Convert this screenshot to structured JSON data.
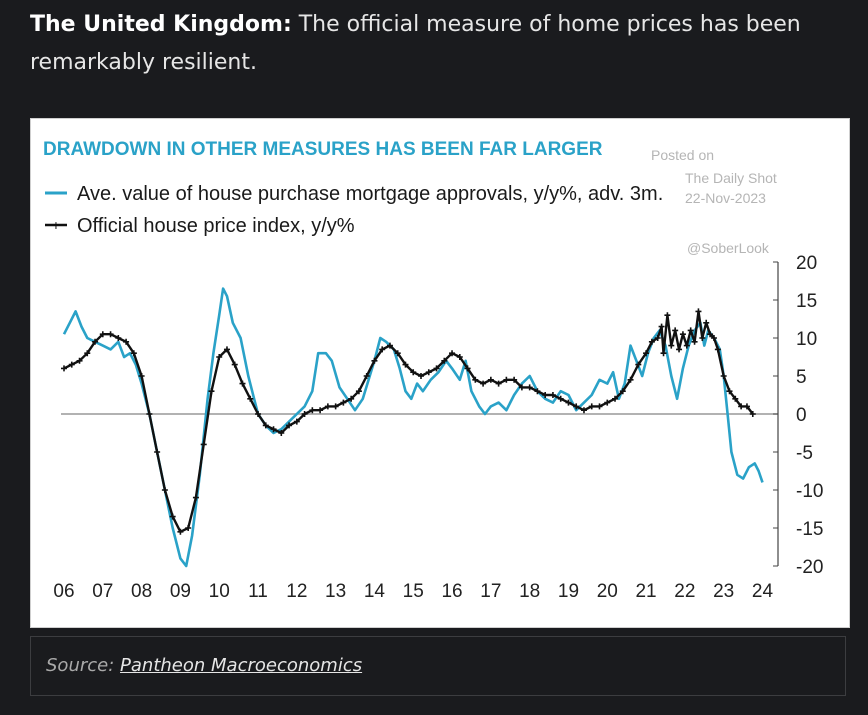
{
  "intro": {
    "bold": "The United Kingdom:",
    "text": " The official measure of home prices has been remarkably resilient."
  },
  "watermark": {
    "line1": "Posted on",
    "line2": "The Daily Shot",
    "line3": "22-Nov-2023",
    "handle": "@SoberLook"
  },
  "source": {
    "label": "Source:",
    "link": "Pantheon Macroeconomics"
  },
  "chart_data": {
    "type": "line",
    "title": "DRAWDOWN IN OTHER MEASURES HAS BEEN FAR LARGER",
    "xlabel": "",
    "ylabel": "",
    "x_ticks": [
      "06",
      "07",
      "08",
      "09",
      "10",
      "11",
      "12",
      "13",
      "14",
      "15",
      "16",
      "17",
      "18",
      "19",
      "20",
      "21",
      "22",
      "23",
      "24"
    ],
    "y_ticks": [
      20,
      15,
      10,
      5,
      0,
      -5,
      -10,
      -15,
      -20
    ],
    "xlim": [
      2006,
      2024.4
    ],
    "ylim": [
      -20,
      20
    ],
    "y_axis_side": "right",
    "legend_position": "top-left",
    "colors": {
      "blue": "#2aa2c8",
      "black": "#111111",
      "title": "#2aa2c8"
    },
    "series": [
      {
        "name": "Ave. value of house purchase mortgage approvals, y/y%, adv. 3m.",
        "color": "#2aa2c8",
        "marker": "none",
        "points": [
          [
            2006.0,
            10.5
          ],
          [
            2006.15,
            12.0
          ],
          [
            2006.3,
            13.5
          ],
          [
            2006.45,
            11.5
          ],
          [
            2006.6,
            10.0
          ],
          [
            2006.8,
            9.5
          ],
          [
            2007.0,
            9.0
          ],
          [
            2007.2,
            8.5
          ],
          [
            2007.4,
            9.5
          ],
          [
            2007.55,
            7.5
          ],
          [
            2007.7,
            8.0
          ],
          [
            2007.85,
            6.5
          ],
          [
            2008.0,
            4.0
          ],
          [
            2008.2,
            0.0
          ],
          [
            2008.4,
            -5.0
          ],
          [
            2008.6,
            -10.0
          ],
          [
            2008.8,
            -15.0
          ],
          [
            2009.0,
            -19.0
          ],
          [
            2009.15,
            -20.0
          ],
          [
            2009.3,
            -16.0
          ],
          [
            2009.5,
            -8.0
          ],
          [
            2009.7,
            2.0
          ],
          [
            2009.85,
            8.0
          ],
          [
            2010.0,
            13.0
          ],
          [
            2010.1,
            16.5
          ],
          [
            2010.2,
            15.5
          ],
          [
            2010.35,
            12.0
          ],
          [
            2010.55,
            10.0
          ],
          [
            2010.75,
            5.0
          ],
          [
            2011.0,
            0.0
          ],
          [
            2011.2,
            -1.5
          ],
          [
            2011.4,
            -2.5
          ],
          [
            2011.6,
            -2.0
          ],
          [
            2011.8,
            -1.0
          ],
          [
            2012.0,
            0.0
          ],
          [
            2012.2,
            1.0
          ],
          [
            2012.4,
            3.0
          ],
          [
            2012.55,
            8.0
          ],
          [
            2012.75,
            8.0
          ],
          [
            2012.9,
            7.0
          ],
          [
            2013.1,
            3.5
          ],
          [
            2013.3,
            2.0
          ],
          [
            2013.5,
            0.5
          ],
          [
            2013.7,
            2.0
          ],
          [
            2013.85,
            4.5
          ],
          [
            2014.0,
            7.0
          ],
          [
            2014.15,
            10.0
          ],
          [
            2014.3,
            9.5
          ],
          [
            2014.5,
            8.5
          ],
          [
            2014.65,
            6.0
          ],
          [
            2014.8,
            3.0
          ],
          [
            2014.95,
            2.0
          ],
          [
            2015.1,
            4.0
          ],
          [
            2015.25,
            3.0
          ],
          [
            2015.45,
            4.5
          ],
          [
            2015.65,
            5.5
          ],
          [
            2015.85,
            7.0
          ],
          [
            2016.0,
            6.0
          ],
          [
            2016.2,
            4.5
          ],
          [
            2016.35,
            7.0
          ],
          [
            2016.5,
            3.0
          ],
          [
            2016.7,
            1.0
          ],
          [
            2016.85,
            0.0
          ],
          [
            2017.0,
            1.0
          ],
          [
            2017.2,
            1.5
          ],
          [
            2017.4,
            0.5
          ],
          [
            2017.6,
            2.5
          ],
          [
            2017.8,
            4.0
          ],
          [
            2018.0,
            5.0
          ],
          [
            2018.2,
            3.0
          ],
          [
            2018.4,
            2.0
          ],
          [
            2018.6,
            1.5
          ],
          [
            2018.8,
            3.0
          ],
          [
            2019.0,
            2.5
          ],
          [
            2019.2,
            0.5
          ],
          [
            2019.4,
            1.5
          ],
          [
            2019.6,
            2.5
          ],
          [
            2019.8,
            4.5
          ],
          [
            2020.0,
            4.0
          ],
          [
            2020.15,
            5.5
          ],
          [
            2020.3,
            2.0
          ],
          [
            2020.45,
            4.0
          ],
          [
            2020.6,
            9.0
          ],
          [
            2020.75,
            7.0
          ],
          [
            2020.9,
            5.0
          ],
          [
            2021.05,
            8.0
          ],
          [
            2021.2,
            10.0
          ],
          [
            2021.35,
            11.0
          ],
          [
            2021.5,
            9.0
          ],
          [
            2021.65,
            5.0
          ],
          [
            2021.8,
            2.0
          ],
          [
            2021.95,
            6.0
          ],
          [
            2022.1,
            9.0
          ],
          [
            2022.25,
            11.0
          ],
          [
            2022.4,
            12.0
          ],
          [
            2022.5,
            9.0
          ],
          [
            2022.6,
            11.0
          ],
          [
            2022.75,
            10.0
          ],
          [
            2022.9,
            8.5
          ],
          [
            2023.0,
            5.0
          ],
          [
            2023.1,
            0.0
          ],
          [
            2023.2,
            -5.0
          ],
          [
            2023.35,
            -8.0
          ],
          [
            2023.5,
            -8.5
          ],
          [
            2023.65,
            -7.0
          ],
          [
            2023.8,
            -6.5
          ],
          [
            2023.9,
            -7.5
          ],
          [
            2024.0,
            -9.0
          ]
        ]
      },
      {
        "name": "Official house price index, y/y%",
        "color": "#111111",
        "marker": "cross",
        "points": [
          [
            2006.0,
            6.0
          ],
          [
            2006.2,
            6.5
          ],
          [
            2006.4,
            7.0
          ],
          [
            2006.6,
            8.0
          ],
          [
            2006.8,
            9.5
          ],
          [
            2007.0,
            10.5
          ],
          [
            2007.2,
            10.5
          ],
          [
            2007.4,
            10.0
          ],
          [
            2007.6,
            9.5
          ],
          [
            2007.8,
            8.0
          ],
          [
            2008.0,
            5.0
          ],
          [
            2008.2,
            0.0
          ],
          [
            2008.4,
            -5.0
          ],
          [
            2008.6,
            -10.0
          ],
          [
            2008.8,
            -13.5
          ],
          [
            2009.0,
            -15.5
          ],
          [
            2009.2,
            -15.0
          ],
          [
            2009.4,
            -11.0
          ],
          [
            2009.6,
            -4.0
          ],
          [
            2009.8,
            3.0
          ],
          [
            2010.0,
            7.5
          ],
          [
            2010.2,
            8.5
          ],
          [
            2010.4,
            6.5
          ],
          [
            2010.6,
            4.0
          ],
          [
            2010.8,
            2.0
          ],
          [
            2011.0,
            0.0
          ],
          [
            2011.2,
            -1.5
          ],
          [
            2011.4,
            -2.0
          ],
          [
            2011.6,
            -2.5
          ],
          [
            2011.8,
            -1.5
          ],
          [
            2012.0,
            -1.0
          ],
          [
            2012.2,
            0.0
          ],
          [
            2012.4,
            0.5
          ],
          [
            2012.6,
            0.5
          ],
          [
            2012.8,
            1.0
          ],
          [
            2013.0,
            1.0
          ],
          [
            2013.2,
            1.5
          ],
          [
            2013.4,
            2.0
          ],
          [
            2013.6,
            3.0
          ],
          [
            2013.8,
            5.0
          ],
          [
            2014.0,
            7.0
          ],
          [
            2014.2,
            8.5
          ],
          [
            2014.4,
            9.0
          ],
          [
            2014.6,
            8.0
          ],
          [
            2014.8,
            6.5
          ],
          [
            2015.0,
            5.5
          ],
          [
            2015.2,
            5.0
          ],
          [
            2015.4,
            5.5
          ],
          [
            2015.6,
            6.0
          ],
          [
            2015.8,
            7.0
          ],
          [
            2016.0,
            8.0
          ],
          [
            2016.2,
            7.5
          ],
          [
            2016.4,
            6.0
          ],
          [
            2016.6,
            4.5
          ],
          [
            2016.8,
            4.0
          ],
          [
            2017.0,
            4.5
          ],
          [
            2017.2,
            4.0
          ],
          [
            2017.4,
            4.5
          ],
          [
            2017.6,
            4.5
          ],
          [
            2017.8,
            3.5
          ],
          [
            2018.0,
            3.5
          ],
          [
            2018.2,
            3.0
          ],
          [
            2018.4,
            2.5
          ],
          [
            2018.6,
            2.5
          ],
          [
            2018.8,
            2.0
          ],
          [
            2019.0,
            1.5
          ],
          [
            2019.2,
            1.0
          ],
          [
            2019.4,
            0.5
          ],
          [
            2019.6,
            1.0
          ],
          [
            2019.8,
            1.0
          ],
          [
            2020.0,
            1.5
          ],
          [
            2020.2,
            2.0
          ],
          [
            2020.4,
            3.0
          ],
          [
            2020.6,
            4.5
          ],
          [
            2020.8,
            6.5
          ],
          [
            2021.0,
            8.0
          ],
          [
            2021.15,
            9.5
          ],
          [
            2021.3,
            10.0
          ],
          [
            2021.4,
            11.5
          ],
          [
            2021.45,
            8.0
          ],
          [
            2021.55,
            13.0
          ],
          [
            2021.65,
            9.0
          ],
          [
            2021.75,
            11.0
          ],
          [
            2021.85,
            8.5
          ],
          [
            2021.95,
            10.5
          ],
          [
            2022.05,
            9.0
          ],
          [
            2022.15,
            11.0
          ],
          [
            2022.25,
            9.5
          ],
          [
            2022.35,
            13.5
          ],
          [
            2022.45,
            10.0
          ],
          [
            2022.55,
            12.0
          ],
          [
            2022.65,
            10.5
          ],
          [
            2022.75,
            10.0
          ],
          [
            2022.85,
            8.5
          ],
          [
            2023.0,
            5.0
          ],
          [
            2023.15,
            3.0
          ],
          [
            2023.3,
            2.0
          ],
          [
            2023.45,
            1.0
          ],
          [
            2023.6,
            1.0
          ],
          [
            2023.75,
            0.0
          ]
        ]
      }
    ]
  }
}
